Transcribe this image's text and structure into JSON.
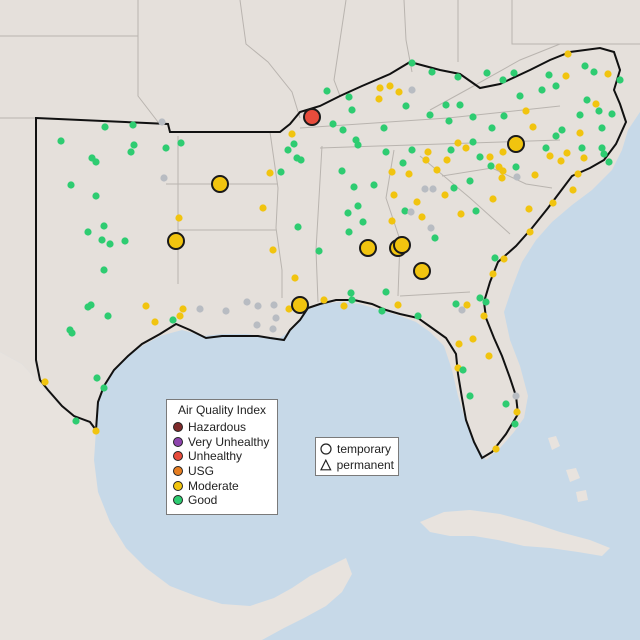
{
  "legend": {
    "title": "Air Quality Index",
    "categories": [
      {
        "label": "Hazardous",
        "color": "#7e2a2a"
      },
      {
        "label": "Very Unhealthy",
        "color": "#8e44ad"
      },
      {
        "label": "Unhealthy",
        "color": "#e74c3c"
      },
      {
        "label": "USG",
        "color": "#e67e22"
      },
      {
        "label": "Moderate",
        "color": "#f1c40f"
      },
      {
        "label": "Good",
        "color": "#2ecc71"
      }
    ],
    "no_data_color": "#b8bcc2"
  },
  "shape_legend": {
    "temporary_label": "temporary",
    "permanent_label": "permanent"
  },
  "colors": {
    "ocean": "#c7d9e8",
    "land": "#e9e4df",
    "land_outside": "#e2ddd8",
    "state_border": "#b9b4af",
    "region_outline": "#111111"
  }
}
